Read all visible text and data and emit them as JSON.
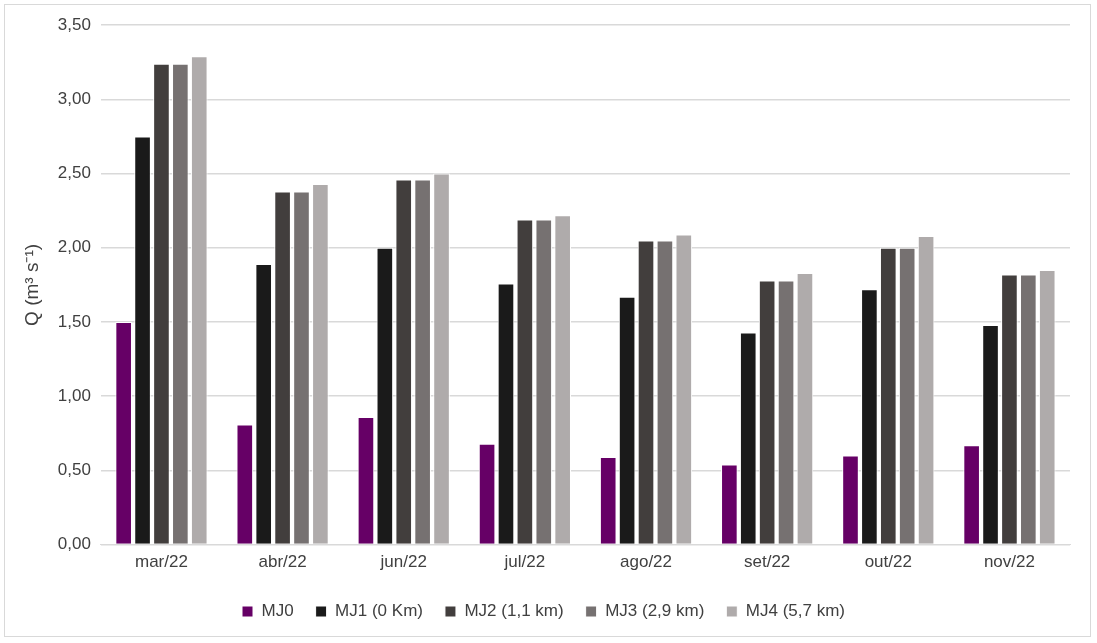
{
  "chart_data": {
    "type": "bar",
    "ylabel": "Q (m³ s⁻¹)",
    "categories": [
      "mar/22",
      "abr/22",
      "jun/22",
      "jul/22",
      "ago/22",
      "set/22",
      "out/22",
      "nov/22"
    ],
    "series": [
      {
        "name": "MJ0",
        "color": "#660066",
        "values": [
          1.5,
          0.81,
          0.86,
          0.68,
          0.59,
          0.54,
          0.6,
          0.67
        ]
      },
      {
        "name": "MJ1 (0 Km)",
        "color": "#1a1a1a",
        "values": [
          2.75,
          1.89,
          2.0,
          1.76,
          1.67,
          1.43,
          1.72,
          1.48
        ]
      },
      {
        "name": "MJ2 (1,1 km)",
        "color": "#423e3d",
        "values": [
          3.24,
          2.38,
          2.46,
          2.19,
          2.05,
          1.78,
          2.0,
          1.82
        ]
      },
      {
        "name": "MJ3 (2,9 km)",
        "color": "#767171",
        "values": [
          3.24,
          2.38,
          2.46,
          2.19,
          2.05,
          1.78,
          2.0,
          1.82
        ]
      },
      {
        "name": "MJ4 (5,7 km)",
        "color": "#afabab",
        "values": [
          3.29,
          2.43,
          2.5,
          2.22,
          2.09,
          1.83,
          2.08,
          1.85
        ]
      }
    ],
    "ylim": [
      0,
      3.5
    ],
    "yticks": [
      {
        "value": 0,
        "label": "0,00"
      },
      {
        "value": 0.5,
        "label": "0,50"
      },
      {
        "value": 1,
        "label": "1,00"
      },
      {
        "value": 1.5,
        "label": "1,50"
      },
      {
        "value": 2,
        "label": "2,00"
      },
      {
        "value": 2.5,
        "label": "2,50"
      },
      {
        "value": 3,
        "label": "3,00"
      },
      {
        "value": 3.5,
        "label": "3,50"
      }
    ],
    "grid": "y",
    "legend": "bottom"
  }
}
